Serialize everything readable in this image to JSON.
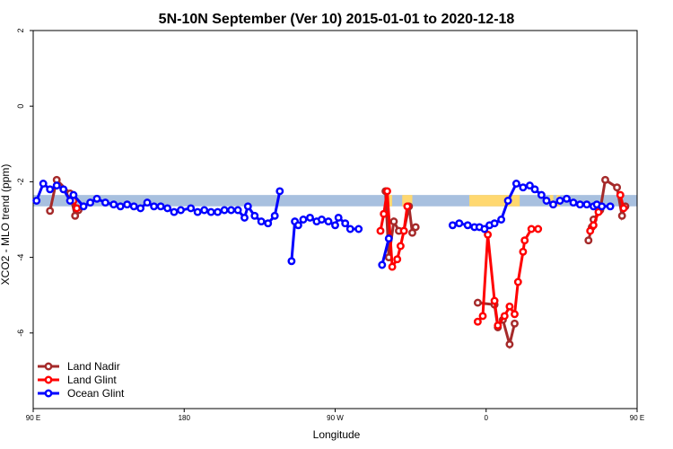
{
  "chart_data": {
    "type": "line",
    "title": "5N-10N September (Ver 10)   2015-01-01 to 2020-12-18",
    "xlabel": "Longitude",
    "ylabel": "XCO2 - MLO trend (ppm)",
    "xlim": [
      90,
      450
    ],
    "ylim": [
      -8,
      2
    ],
    "yticks": [
      2,
      0,
      -2,
      -4,
      -6
    ],
    "xticks": [
      {
        "value": 90,
        "label": "90 E"
      },
      {
        "value": 180,
        "label": "180"
      },
      {
        "value": 270,
        "label": "90 W"
      },
      {
        "value": 360,
        "label": "0"
      },
      {
        "value": 450,
        "label": "90 E"
      }
    ],
    "legend_position": "bottom-left",
    "land_mask": {
      "band_y": [
        -2.65,
        -2.35
      ],
      "land_segments": [
        [
          302,
          304
        ],
        [
          310,
          316
        ],
        [
          350,
          380
        ],
        [
          398,
          400
        ],
        [
          402,
          404
        ]
      ]
    },
    "series": [
      {
        "name": "Land Nadir",
        "color": "#a52a2a",
        "segments": [
          [
            [
              100,
              -2.77
            ],
            [
              104,
              -1.95
            ],
            [
              112,
              -2.31
            ],
            [
              115,
              -2.9
            ],
            [
              117,
              -2.75
            ]
          ],
          [
            [
              300,
              -2.25
            ],
            [
              302,
              -4.0
            ],
            [
              305,
              -3.05
            ],
            [
              308,
              -3.3
            ],
            [
              311,
              -3.3
            ],
            [
              314,
              -2.65
            ],
            [
              316,
              -3.35
            ],
            [
              318,
              -3.2
            ]
          ],
          [
            [
              355,
              -5.2
            ],
            [
              365,
              -5.25
            ],
            [
              367,
              -5.85
            ],
            [
              370,
              -5.65
            ],
            [
              374,
              -6.3
            ],
            [
              377,
              -5.75
            ]
          ],
          [
            [
              421,
              -3.55
            ],
            [
              423,
              -3.2
            ],
            [
              424,
              -3.0
            ],
            [
              428,
              -2.75
            ],
            [
              431,
              -1.95
            ],
            [
              438,
              -2.15
            ],
            [
              441,
              -2.9
            ],
            [
              443,
              -2.65
            ]
          ]
        ]
      },
      {
        "name": "Land Glint",
        "color": "#ff0000",
        "segments": [
          [
            [
              114,
              -2.5
            ],
            [
              116,
              -2.7
            ]
          ],
          [
            [
              297,
              -3.3
            ],
            [
              299,
              -2.85
            ],
            [
              301,
              -2.25
            ],
            [
              304,
              -4.25
            ],
            [
              307,
              -4.05
            ],
            [
              309,
              -3.7
            ],
            [
              311,
              -3.3
            ],
            [
              313,
              -2.65
            ]
          ],
          [
            [
              355,
              -5.7
            ],
            [
              358,
              -5.55
            ],
            [
              361,
              -3.4
            ],
            [
              365,
              -5.15
            ],
            [
              367,
              -5.8
            ],
            [
              371,
              -5.55
            ],
            [
              374,
              -5.3
            ],
            [
              377,
              -5.5
            ],
            [
              379,
              -4.65
            ],
            [
              382,
              -3.85
            ],
            [
              383,
              -3.55
            ],
            [
              387,
              -3.25
            ],
            [
              391,
              -3.25
            ]
          ],
          [
            [
              422,
              -3.3
            ],
            [
              424,
              -3.15
            ],
            [
              427,
              -2.8
            ]
          ],
          [
            [
              440,
              -2.35
            ],
            [
              442,
              -2.7
            ]
          ]
        ]
      },
      {
        "name": "Ocean Glint",
        "color": "#0000ff",
        "segments": [
          [
            [
              92,
              -2.5
            ],
            [
              96,
              -2.05
            ],
            [
              100,
              -2.2
            ],
            [
              104,
              -2.1
            ],
            [
              108,
              -2.2
            ],
            [
              112,
              -2.5
            ],
            [
              114,
              -2.35
            ],
            [
              120,
              -2.65
            ],
            [
              124,
              -2.55
            ],
            [
              128,
              -2.45
            ],
            [
              133,
              -2.55
            ],
            [
              138,
              -2.6
            ],
            [
              142,
              -2.65
            ],
            [
              146,
              -2.6
            ],
            [
              150,
              -2.65
            ],
            [
              154,
              -2.7
            ],
            [
              158,
              -2.55
            ],
            [
              162,
              -2.65
            ],
            [
              166,
              -2.65
            ],
            [
              170,
              -2.7
            ],
            [
              174,
              -2.8
            ],
            [
              178,
              -2.75
            ],
            [
              184,
              -2.7
            ],
            [
              188,
              -2.8
            ],
            [
              192,
              -2.75
            ],
            [
              196,
              -2.8
            ],
            [
              200,
              -2.8
            ],
            [
              204,
              -2.75
            ],
            [
              208,
              -2.75
            ],
            [
              212,
              -2.75
            ],
            [
              216,
              -2.95
            ],
            [
              218,
              -2.65
            ],
            [
              222,
              -2.9
            ],
            [
              226,
              -3.05
            ],
            [
              230,
              -3.1
            ],
            [
              234,
              -2.9
            ],
            [
              237,
              -2.25
            ]
          ],
          [
            [
              244,
              -4.1
            ],
            [
              246,
              -3.05
            ],
            [
              248,
              -3.15
            ],
            [
              251,
              -3.0
            ],
            [
              255,
              -2.95
            ],
            [
              259,
              -3.05
            ],
            [
              262,
              -3.0
            ],
            [
              266,
              -3.05
            ],
            [
              270,
              -3.15
            ],
            [
              272,
              -2.95
            ],
            [
              276,
              -3.1
            ],
            [
              279,
              -3.25
            ],
            [
              284,
              -3.25
            ]
          ],
          [
            [
              298,
              -4.2
            ],
            [
              302,
              -3.5
            ]
          ],
          [
            [
              340,
              -3.15
            ],
            [
              344,
              -3.1
            ],
            [
              349,
              -3.15
            ],
            [
              353,
              -3.2
            ],
            [
              356,
              -3.2
            ],
            [
              359,
              -3.25
            ],
            [
              362,
              -3.15
            ],
            [
              365,
              -3.1
            ],
            [
              369,
              -3.0
            ],
            [
              373,
              -2.5
            ],
            [
              378,
              -2.05
            ],
            [
              382,
              -2.15
            ],
            [
              386,
              -2.1
            ],
            [
              389,
              -2.2
            ],
            [
              393,
              -2.35
            ],
            [
              396,
              -2.5
            ],
            [
              400,
              -2.6
            ],
            [
              404,
              -2.5
            ],
            [
              408,
              -2.45
            ],
            [
              412,
              -2.55
            ],
            [
              416,
              -2.6
            ],
            [
              420,
              -2.6
            ],
            [
              424,
              -2.65
            ],
            [
              426,
              -2.6
            ],
            [
              429,
              -2.65
            ],
            [
              434,
              -2.65
            ]
          ]
        ]
      }
    ]
  }
}
